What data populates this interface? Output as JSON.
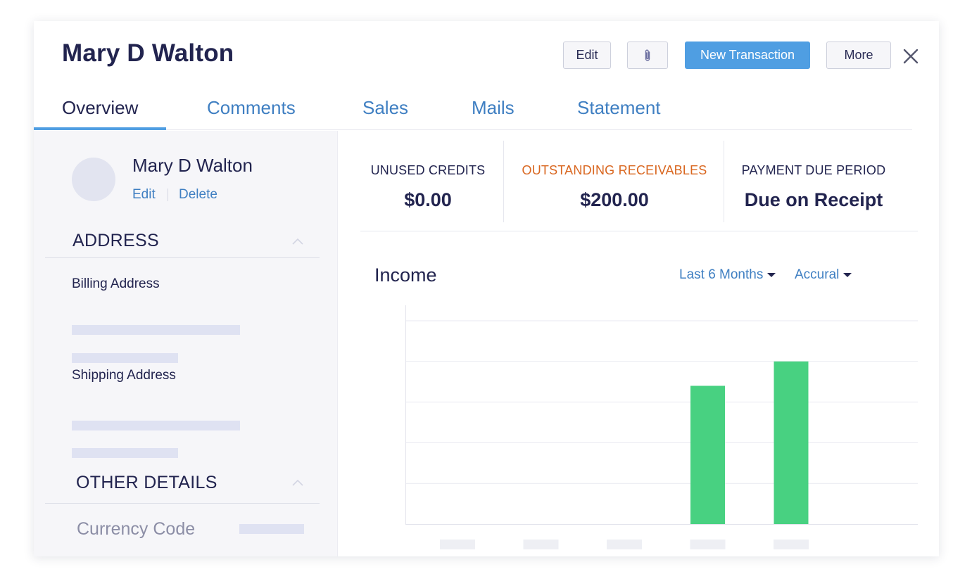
{
  "header": {
    "title": "Mary D Walton",
    "edit_label": "Edit",
    "attach_icon": "paperclip-icon",
    "new_transaction_label": "New Transaction",
    "more_label": "More",
    "close_icon": "close-icon"
  },
  "tabs": [
    {
      "label": "Overview",
      "active": true
    },
    {
      "label": "Comments",
      "active": false
    },
    {
      "label": "Sales",
      "active": false
    },
    {
      "label": "Mails",
      "active": false
    },
    {
      "label": "Statement",
      "active": false
    }
  ],
  "sidebar": {
    "contact_name": "Mary D Walton",
    "edit_label": "Edit",
    "delete_label": "Delete",
    "address_section": "ADDRESS",
    "billing_label": "Billing Address",
    "shipping_label": "Shipping Address",
    "other_section": "OTHER DETAILS",
    "currency_label": "Currency Code"
  },
  "stats": [
    {
      "label": "UNUSED CREDITS",
      "value": "$0.00"
    },
    {
      "label": "OUTSTANDING RECEIVABLES",
      "value": "$200.00"
    },
    {
      "label": "PAYMENT DUE PERIOD",
      "value": "Due on Receipt"
    }
  ],
  "income": {
    "title": "Income",
    "period_dropdown": "Last 6 Months",
    "basis_dropdown": "Accural"
  },
  "colors": {
    "accent": "#4f9ee2",
    "link": "#3f7fc2",
    "warning": "#d9661f",
    "bar": "#48d181",
    "heading": "#22244f"
  },
  "chart_data": {
    "type": "bar",
    "categories": [
      "",
      "",
      "",
      "",
      ""
    ],
    "values": [
      0,
      0,
      0,
      3.4,
      4
    ],
    "ylim": [
      0,
      5
    ],
    "grid": true
  }
}
